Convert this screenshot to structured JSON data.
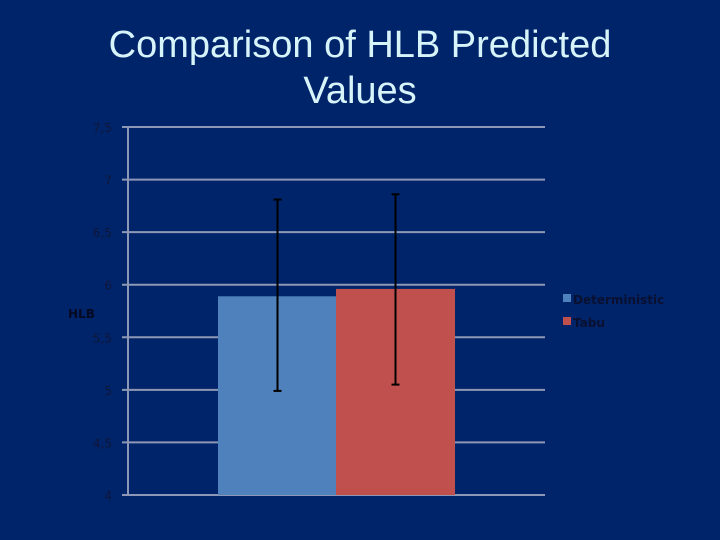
{
  "slide": {
    "title": "Comparison of HLB Predicted Values",
    "title_line1": "Comparison of HLB Predicted",
    "title_line2": "Values"
  },
  "colors": {
    "background": "#002469",
    "title": "#d8f4fb",
    "gridline": "#8e98b6",
    "deterministic": "#4f81bd",
    "tabu": "#c0504d",
    "error_bar": "#000000"
  },
  "chart_data": {
    "type": "bar",
    "title": "Comparison of HLB Predicted Values",
    "xlabel": "",
    "ylabel": "HLB",
    "ylim": [
      4,
      7.5
    ],
    "yticks": [
      4,
      4.5,
      5,
      5.5,
      6,
      6.5,
      7,
      7.5
    ],
    "ytick_labels": [
      "4",
      "4,5",
      "5",
      "5,5",
      "6",
      "6,5",
      "7",
      "7,5"
    ],
    "grid": true,
    "legend_position": "right",
    "categories": [
      ""
    ],
    "series": [
      {
        "name": "Deterministic",
        "values": [
          5.89
        ],
        "error_low": [
          4.99
        ],
        "error_high": [
          6.81
        ],
        "color": "#4f81bd"
      },
      {
        "name": "Tabu",
        "values": [
          5.96
        ],
        "error_low": [
          5.05
        ],
        "error_high": [
          6.86
        ],
        "color": "#c0504d"
      }
    ]
  },
  "legend": {
    "items": [
      {
        "label": "Deterministic",
        "color": "#4f81bd"
      },
      {
        "label": "Tabu",
        "color": "#c0504d"
      }
    ]
  }
}
